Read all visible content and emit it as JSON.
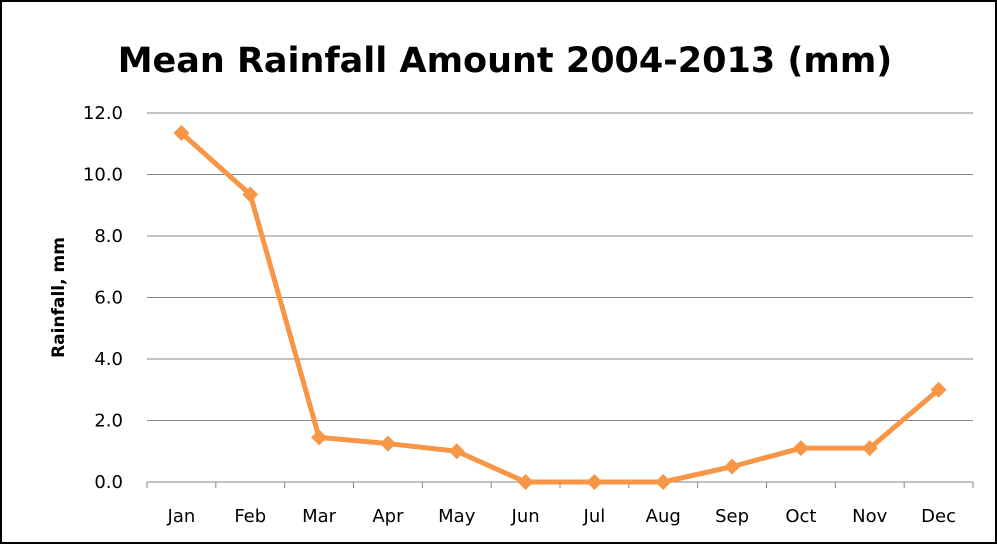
{
  "chart_data": {
    "type": "line",
    "title": "Mean Rainfall Amount 2004-2013 (mm)",
    "xlabel": "",
    "ylabel": "Rainfall, mm",
    "categories": [
      "Jan",
      "Feb",
      "Mar",
      "Apr",
      "May",
      "Jun",
      "Jul",
      "Aug",
      "Sep",
      "Oct",
      "Nov",
      "Dec"
    ],
    "values": [
      11.35,
      9.35,
      1.45,
      1.25,
      1.0,
      0.0,
      0.0,
      0.0,
      0.5,
      1.1,
      1.1,
      3.0
    ],
    "ylim": [
      0,
      12
    ],
    "yticks": [
      "0.0",
      "2.0",
      "4.0",
      "6.0",
      "8.0",
      "10.0",
      "12.0"
    ],
    "grid": true,
    "legend": "none",
    "color": "#F79646",
    "marker": "diamond"
  }
}
